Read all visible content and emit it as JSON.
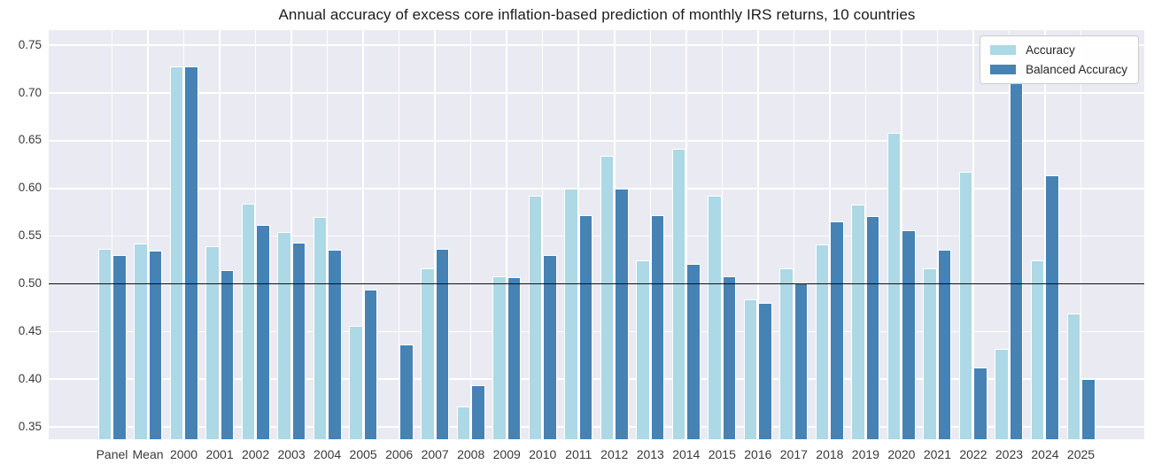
{
  "figure": {
    "title": "Annual accuracy of excess core inflation-based prediction of monthly IRS returns, 10 countries"
  },
  "chart_data": {
    "type": "bar",
    "title": "Annual accuracy of excess core inflation-based prediction of monthly IRS returns, 10 countries",
    "categories": [
      "Panel",
      "Mean",
      "2000",
      "2001",
      "2002",
      "2003",
      "2004",
      "2005",
      "2006",
      "2007",
      "2008",
      "2009",
      "2010",
      "2011",
      "2012",
      "2013",
      "2014",
      "2015",
      "2016",
      "2017",
      "2018",
      "2019",
      "2020",
      "2021",
      "2022",
      "2023",
      "2024",
      "2025"
    ],
    "series": [
      {
        "name": "Accuracy",
        "color": "#add8e6",
        "values": [
          0.537,
          0.542,
          0.728,
          0.539,
          0.584,
          0.554,
          0.57,
          0.456,
          null,
          0.516,
          0.371,
          0.508,
          0.592,
          0.6,
          0.634,
          0.525,
          0.642,
          0.592,
          0.484,
          0.516,
          0.541,
          0.583,
          0.658,
          0.516,
          0.617,
          0.432,
          0.525,
          0.469
        ]
      },
      {
        "name": "Balanced Accuracy",
        "color": "#4682b4",
        "values": [
          0.53,
          0.535,
          0.728,
          0.514,
          0.562,
          0.543,
          0.536,
          0.494,
          0.436,
          0.537,
          0.394,
          0.507,
          0.53,
          0.572,
          0.6,
          0.572,
          0.521,
          0.508,
          0.48,
          0.501,
          0.565,
          0.571,
          0.556,
          0.536,
          0.412,
          0.712,
          0.614,
          0.4
        ]
      }
    ],
    "xlabel": "",
    "ylabel": "",
    "ylim": [
      0.337,
      0.766
    ],
    "yticks": [
      0.35,
      0.4,
      0.45,
      0.5,
      0.55,
      0.6,
      0.65,
      0.7,
      0.75
    ],
    "ytick_labels": [
      "0.35",
      "0.40",
      "0.45",
      "0.50",
      "0.55",
      "0.60",
      "0.65",
      "0.70",
      "0.75"
    ],
    "reference_line": 0.5,
    "reference_line_color": "#111111",
    "grid": true,
    "grid_color": "#ffffff",
    "plot_background": "#eaeaf2",
    "legend_position": "upper right"
  },
  "legend": {
    "items": [
      {
        "label": "Accuracy"
      },
      {
        "label": "Balanced Accuracy"
      }
    ]
  }
}
